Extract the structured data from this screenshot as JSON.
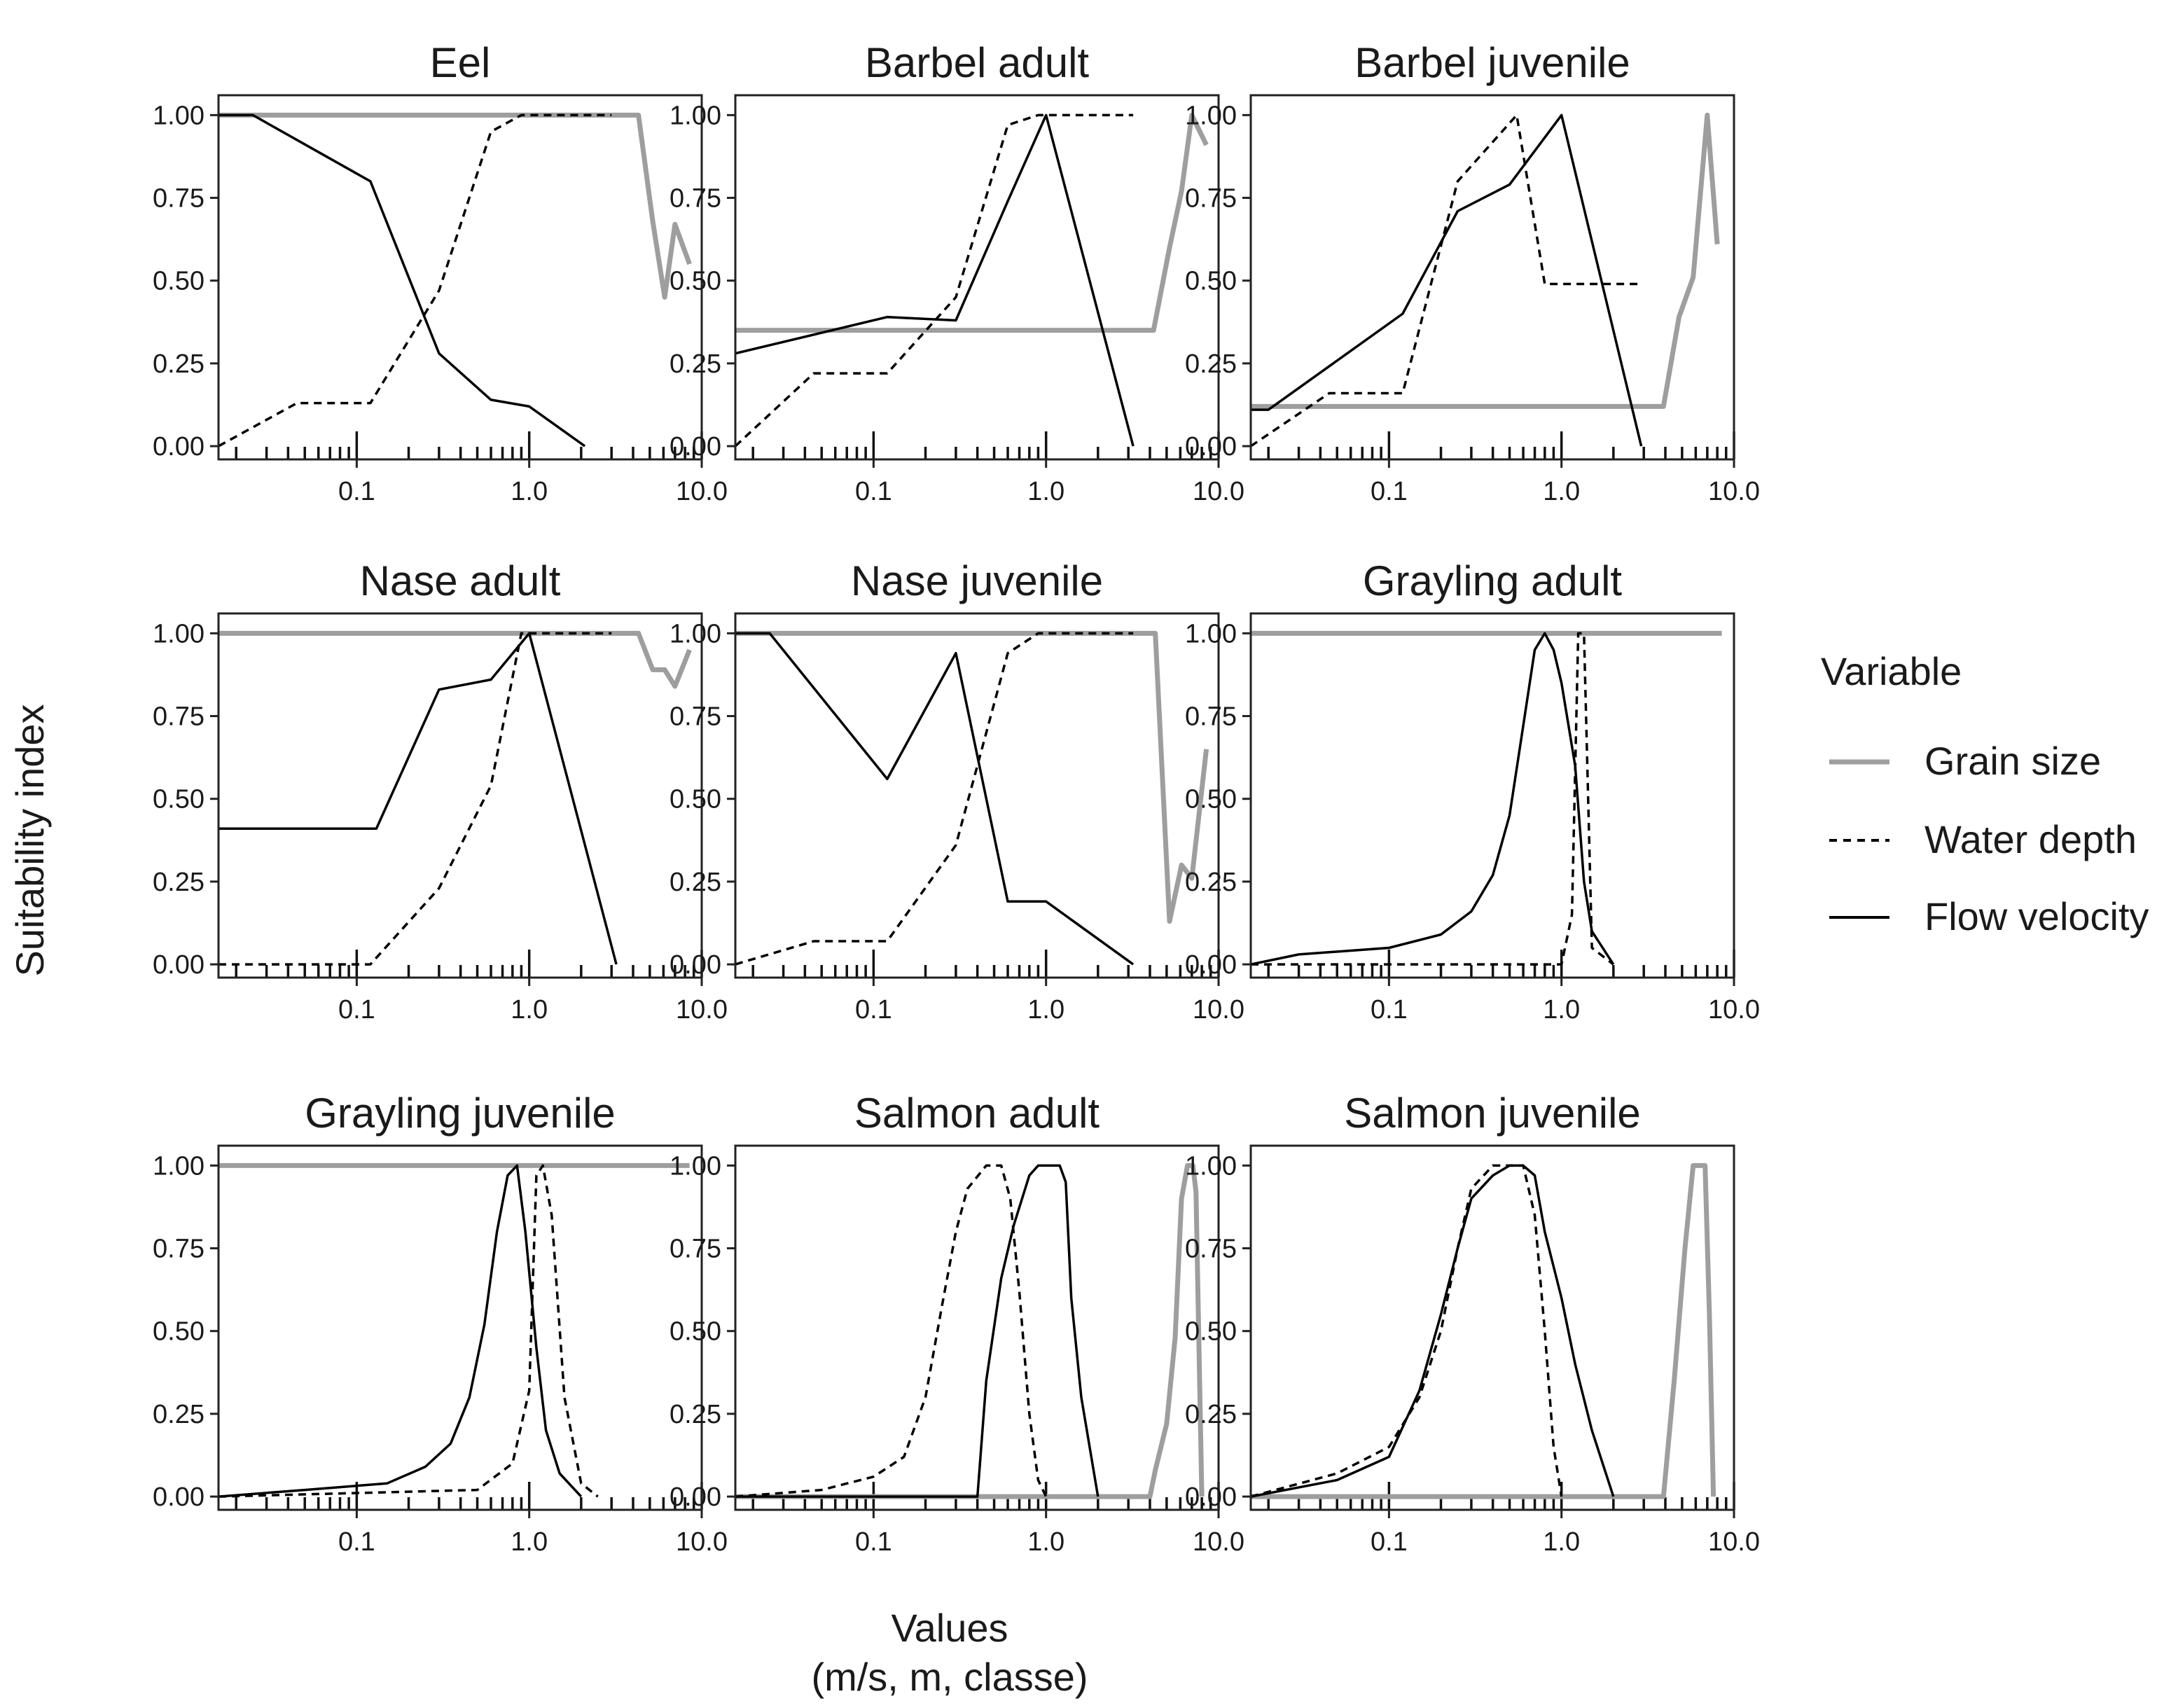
{
  "chart_data": {
    "type": "line",
    "ylabel": "Suitability index",
    "xlabel_line1": "Values",
    "xlabel_line2": "(m/s, m, classe)",
    "x_scale": "log10",
    "xlim": [
      0.0158,
      10.0
    ],
    "ylim": [
      -0.04,
      1.06
    ],
    "y_ticks": [
      "0.00",
      "0.25",
      "0.50",
      "0.75",
      "1.00"
    ],
    "x_ticks": [
      "0.1",
      "1.0",
      "10.0"
    ],
    "legend": {
      "title": "Variable",
      "entries": [
        {
          "key": "grain",
          "label": "Grain size",
          "color": "#9e9e9e",
          "style": "solid"
        },
        {
          "key": "depth",
          "label": "Water depth",
          "color": "#000000",
          "style": "dashed"
        },
        {
          "key": "velocity",
          "label": "Flow velocity",
          "color": "#000000",
          "style": "solid"
        }
      ]
    },
    "panels": [
      {
        "title": "Eel",
        "series": {
          "grain": [
            [
              0.0158,
              1
            ],
            [
              4.3,
              1
            ],
            [
              5.2,
              0.68
            ],
            [
              6.1,
              0.45
            ],
            [
              7.0,
              0.67
            ],
            [
              8.5,
              0.55
            ]
          ],
          "depth": [
            [
              0.0158,
              0
            ],
            [
              0.045,
              0.13
            ],
            [
              0.12,
              0.13
            ],
            [
              0.3,
              0.47
            ],
            [
              0.6,
              0.95
            ],
            [
              0.9,
              1
            ],
            [
              3.0,
              1
            ]
          ],
          "velocity": [
            [
              0.0158,
              1
            ],
            [
              0.025,
              1
            ],
            [
              0.12,
              0.8
            ],
            [
              0.3,
              0.28
            ],
            [
              0.6,
              0.14
            ],
            [
              1.0,
              0.12
            ],
            [
              2.1,
              0
            ]
          ]
        }
      },
      {
        "title": "Barbel adult",
        "series": {
          "grain": [
            [
              0.0158,
              0.35
            ],
            [
              4.2,
              0.35
            ],
            [
              5.2,
              0.6
            ],
            [
              6.1,
              0.77
            ],
            [
              7.0,
              1
            ],
            [
              8.5,
              0.91
            ]
          ],
          "depth": [
            [
              0.0158,
              0
            ],
            [
              0.045,
              0.22
            ],
            [
              0.12,
              0.22
            ],
            [
              0.3,
              0.45
            ],
            [
              0.6,
              0.97
            ],
            [
              0.9,
              1
            ],
            [
              3.2,
              1
            ]
          ],
          "velocity": [
            [
              0.0158,
              0.28
            ],
            [
              0.12,
              0.39
            ],
            [
              0.3,
              0.38
            ],
            [
              0.6,
              0.74
            ],
            [
              1.0,
              1
            ],
            [
              3.2,
              0
            ]
          ]
        }
      },
      {
        "title": "Barbel juvenile",
        "series": {
          "grain": [
            [
              0.0158,
              0.12
            ],
            [
              3.9,
              0.12
            ],
            [
              4.8,
              0.39
            ],
            [
              5.8,
              0.51
            ],
            [
              7.0,
              1
            ],
            [
              8.0,
              0.61
            ]
          ],
          "depth": [
            [
              0.0158,
              0
            ],
            [
              0.045,
              0.16
            ],
            [
              0.12,
              0.16
            ],
            [
              0.25,
              0.8
            ],
            [
              0.55,
              1
            ],
            [
              0.8,
              0.49
            ],
            [
              2.8,
              0.49
            ]
          ],
          "velocity": [
            [
              0.0158,
              0.11
            ],
            [
              0.02,
              0.11
            ],
            [
              0.12,
              0.4
            ],
            [
              0.25,
              0.71
            ],
            [
              0.5,
              0.79
            ],
            [
              1.0,
              1
            ],
            [
              2.9,
              0
            ]
          ]
        }
      },
      {
        "title": "Nase adult",
        "series": {
          "grain": [
            [
              0.0158,
              1
            ],
            [
              4.3,
              1
            ],
            [
              5.2,
              0.89
            ],
            [
              6.1,
              0.89
            ],
            [
              7.0,
              0.84
            ],
            [
              8.5,
              0.95
            ]
          ],
          "depth": [
            [
              0.0158,
              0
            ],
            [
              0.12,
              0
            ],
            [
              0.3,
              0.23
            ],
            [
              0.6,
              0.54
            ],
            [
              0.9,
              1
            ],
            [
              3.0,
              1
            ]
          ],
          "velocity": [
            [
              0.0158,
              0.41
            ],
            [
              0.13,
              0.41
            ],
            [
              0.3,
              0.83
            ],
            [
              0.6,
              0.86
            ],
            [
              1.0,
              1
            ],
            [
              3.2,
              0
            ]
          ]
        }
      },
      {
        "title": "Nase juvenile",
        "series": {
          "grain": [
            [
              0.0158,
              1
            ],
            [
              4.3,
              1
            ],
            [
              5.2,
              0.13
            ],
            [
              6.1,
              0.3
            ],
            [
              7.0,
              0.26
            ],
            [
              8.5,
              0.65
            ]
          ],
          "depth": [
            [
              0.0158,
              0
            ],
            [
              0.045,
              0.07
            ],
            [
              0.12,
              0.07
            ],
            [
              0.3,
              0.36
            ],
            [
              0.6,
              0.94
            ],
            [
              0.9,
              1
            ],
            [
              3.2,
              1
            ]
          ],
          "velocity": [
            [
              0.0158,
              1
            ],
            [
              0.025,
              1
            ],
            [
              0.12,
              0.56
            ],
            [
              0.3,
              0.94
            ],
            [
              0.6,
              0.19
            ],
            [
              1.0,
              0.19
            ],
            [
              3.2,
              0
            ]
          ]
        }
      },
      {
        "title": "Grayling adult",
        "series": {
          "grain": [
            [
              0.0158,
              1
            ],
            [
              8.5,
              1
            ]
          ],
          "depth": [
            [
              0.0158,
              0
            ],
            [
              1.0,
              0
            ],
            [
              1.15,
              0.15
            ],
            [
              1.25,
              1
            ],
            [
              1.35,
              1
            ],
            [
              1.5,
              0.05
            ],
            [
              2.0,
              0
            ]
          ],
          "velocity": [
            [
              0.0158,
              0
            ],
            [
              0.03,
              0.03
            ],
            [
              0.1,
              0.05
            ],
            [
              0.2,
              0.09
            ],
            [
              0.3,
              0.16
            ],
            [
              0.4,
              0.27
            ],
            [
              0.5,
              0.45
            ],
            [
              0.6,
              0.72
            ],
            [
              0.7,
              0.95
            ],
            [
              0.8,
              1
            ],
            [
              0.9,
              0.95
            ],
            [
              1.0,
              0.85
            ],
            [
              1.2,
              0.6
            ],
            [
              1.35,
              0.25
            ],
            [
              1.5,
              0.1
            ],
            [
              2.0,
              0
            ]
          ]
        }
      },
      {
        "title": "Grayling juvenile",
        "series": {
          "grain": [
            [
              0.0158,
              1
            ],
            [
              8.5,
              1
            ]
          ],
          "depth": [
            [
              0.0158,
              0
            ],
            [
              0.5,
              0.02
            ],
            [
              0.8,
              0.1
            ],
            [
              1.0,
              0.32
            ],
            [
              1.1,
              0.97
            ],
            [
              1.2,
              1
            ],
            [
              1.35,
              0.85
            ],
            [
              1.6,
              0.3
            ],
            [
              2.0,
              0.04
            ],
            [
              2.5,
              0
            ]
          ],
          "velocity": [
            [
              0.0158,
              0
            ],
            [
              0.05,
              0.02
            ],
            [
              0.15,
              0.04
            ],
            [
              0.25,
              0.09
            ],
            [
              0.35,
              0.16
            ],
            [
              0.45,
              0.3
            ],
            [
              0.55,
              0.52
            ],
            [
              0.65,
              0.8
            ],
            [
              0.75,
              0.97
            ],
            [
              0.85,
              1
            ],
            [
              0.95,
              0.8
            ],
            [
              1.1,
              0.45
            ],
            [
              1.25,
              0.2
            ],
            [
              1.5,
              0.07
            ],
            [
              2.0,
              0
            ]
          ]
        }
      },
      {
        "title": "Salmon adult",
        "series": {
          "grain": [
            [
              0.0158,
              0
            ],
            [
              4.0,
              0
            ],
            [
              4.3,
              0.08
            ],
            [
              5.0,
              0.22
            ],
            [
              5.6,
              0.48
            ],
            [
              6.1,
              0.9
            ],
            [
              6.6,
              1
            ],
            [
              7.1,
              1
            ],
            [
              7.4,
              0.92
            ],
            [
              8.0,
              0
            ]
          ],
          "depth": [
            [
              0.0158,
              0
            ],
            [
              0.05,
              0.02
            ],
            [
              0.1,
              0.06
            ],
            [
              0.15,
              0.12
            ],
            [
              0.2,
              0.3
            ],
            [
              0.25,
              0.58
            ],
            [
              0.3,
              0.8
            ],
            [
              0.35,
              0.93
            ],
            [
              0.45,
              1
            ],
            [
              0.55,
              1
            ],
            [
              0.62,
              0.9
            ],
            [
              0.7,
              0.62
            ],
            [
              0.8,
              0.25
            ],
            [
              0.9,
              0.05
            ],
            [
              1.0,
              0
            ]
          ],
          "velocity": [
            [
              0.0158,
              0
            ],
            [
              0.4,
              0
            ],
            [
              0.45,
              0.35
            ],
            [
              0.55,
              0.66
            ],
            [
              0.65,
              0.82
            ],
            [
              0.8,
              0.97
            ],
            [
              0.9,
              1
            ],
            [
              1.2,
              1
            ],
            [
              1.3,
              0.95
            ],
            [
              1.4,
              0.6
            ],
            [
              1.6,
              0.3
            ],
            [
              2.0,
              0
            ]
          ]
        }
      },
      {
        "title": "Salmon juvenile",
        "series": {
          "grain": [
            [
              0.0158,
              0
            ],
            [
              3.9,
              0
            ],
            [
              4.5,
              0.35
            ],
            [
              5.2,
              0.75
            ],
            [
              5.8,
              1
            ],
            [
              6.8,
              1
            ],
            [
              7.2,
              0.55
            ],
            [
              7.6,
              0
            ]
          ],
          "depth": [
            [
              0.0158,
              0
            ],
            [
              0.05,
              0.07
            ],
            [
              0.1,
              0.15
            ],
            [
              0.15,
              0.3
            ],
            [
              0.2,
              0.5
            ],
            [
              0.25,
              0.75
            ],
            [
              0.3,
              0.93
            ],
            [
              0.4,
              1
            ],
            [
              0.6,
              1
            ],
            [
              0.7,
              0.85
            ],
            [
              0.8,
              0.5
            ],
            [
              0.9,
              0.15
            ],
            [
              1.0,
              0
            ]
          ],
          "velocity": [
            [
              0.0158,
              0
            ],
            [
              0.05,
              0.05
            ],
            [
              0.1,
              0.12
            ],
            [
              0.15,
              0.32
            ],
            [
              0.2,
              0.55
            ],
            [
              0.25,
              0.75
            ],
            [
              0.3,
              0.9
            ],
            [
              0.4,
              0.97
            ],
            [
              0.5,
              1
            ],
            [
              0.6,
              1
            ],
            [
              0.7,
              0.97
            ],
            [
              0.8,
              0.8
            ],
            [
              1.0,
              0.6
            ],
            [
              1.2,
              0.4
            ],
            [
              1.5,
              0.2
            ],
            [
              2.0,
              0
            ]
          ]
        }
      }
    ]
  }
}
